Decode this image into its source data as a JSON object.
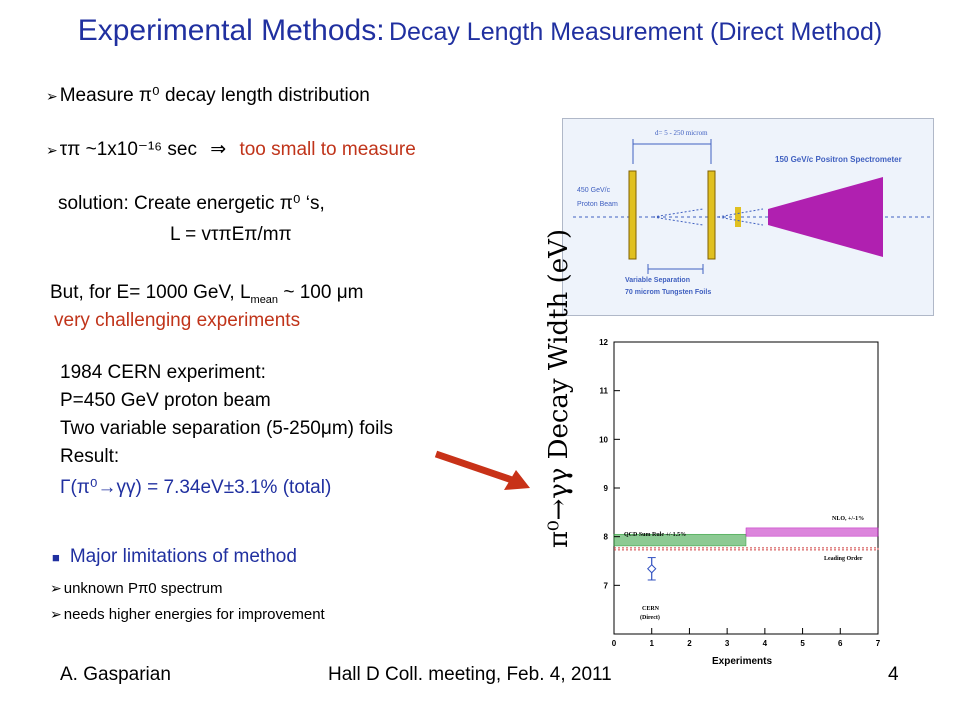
{
  "title": {
    "main": "Experimental Methods:",
    "sub": "Decay Length Measurement (Direct Method)"
  },
  "bullets": {
    "measure": "Measure π⁰ decay length distribution",
    "tau": "τπ ~1x10⁻¹⁶ sec",
    "tau_arrow": "⇒",
    "tau_result": "too small to measure",
    "solution": "solution:   Create energetic π⁰ ‘s,",
    "formula": "L = vτπEπ/mπ",
    "but": "But, for E= 1000 GeV, L",
    "but_sub": "mean",
    "but_tail": " ~ 100 μm",
    "challenging": "very challenging experiments"
  },
  "experiment": {
    "l1": "1984 CERN experiment:",
    "l2": "P=450 GeV proton beam",
    "l3": "Two variable separation (5-250μm) foils",
    "l4": "Result:",
    "l5": "Γ(π⁰→γγ) = 7.34eV±3.1% (total)"
  },
  "limitations": {
    "head": "Major limitations of method",
    "i1": "unknown Pπ0 spectrum",
    "i2": "needs higher energies for improvement"
  },
  "diagram": {
    "d_label": "d= 5 - 250 microm",
    "beam_energy": "450 GeV/c",
    "beam": "Proton Beam",
    "spectrometer": "150 GeV/c   Positron Spectrometer",
    "variable": "Variable Separation",
    "foils": "70 microm Tungsten Foils"
  },
  "plot": {
    "ylabel": "π⁰→γγ Decay Width (eV)",
    "xlabel": "Experiments",
    "band1": "QCD Sum Rule +/-1.5%",
    "band2": "NLO, +/-1%",
    "band3": "Leading Order",
    "cern": "CERN",
    "cern2": "(Direct)"
  },
  "chart_data": {
    "type": "scatter",
    "xlabel": "Experiments",
    "ylabel": "π⁰→γγ Decay Width (eV)",
    "xlim": [
      0,
      7
    ],
    "ylim": [
      6,
      12
    ],
    "x_ticks": [
      "0",
      "1",
      "2",
      "3",
      "4",
      "5",
      "6",
      "7"
    ],
    "y_ticks": [
      "7",
      "8",
      "9",
      "10",
      "11",
      "12"
    ],
    "points": [
      {
        "name": "CERN (Direct)",
        "x": 1,
        "y": 7.34,
        "err": 0.23
      }
    ],
    "bands": [
      {
        "name": "QCD Sum Rule +/-1.5%",
        "x": [
          0,
          3.5
        ],
        "y": [
          7.81,
          8.05
        ],
        "color": "#2e9e3a"
      },
      {
        "name": "NLO, +/-1%",
        "x": [
          3.5,
          7
        ],
        "y": [
          8.01,
          8.18
        ],
        "color": "#c020c0"
      },
      {
        "name": "Leading Order",
        "x": [
          0,
          7
        ],
        "y": [
          7.73,
          7.77
        ],
        "color": "#d04040"
      }
    ]
  },
  "footer": {
    "author": "A. Gasparian",
    "meeting": "Hall D Coll. meeting, Feb. 4, 2011",
    "page": "4"
  }
}
